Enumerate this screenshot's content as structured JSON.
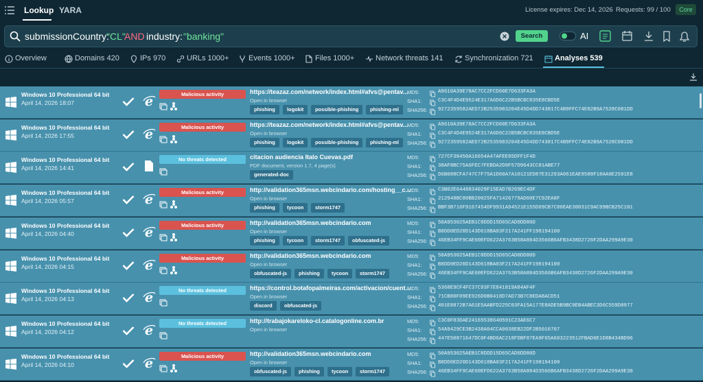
{
  "top_bar": {
    "tabs": [
      "Lookup",
      "YARA"
    ],
    "license": "License expires: Dec 14, 2026",
    "requests": "Requests: 99 / 100",
    "plan": "Core"
  },
  "search": {
    "query": [
      {
        "text": "submissionCountry:",
        "color": "#ffffff"
      },
      {
        "text": "\"CL\"",
        "color": "#6ee59a"
      },
      {
        "text": "AND",
        "color": "#ff6b81"
      },
      {
        "text": "industry:",
        "color": "#ffffff"
      },
      {
        "text": "\"banking\"",
        "color": "#6ee59a"
      }
    ],
    "button": "Search",
    "ai": "AI"
  },
  "result_tabs": {
    "items": [
      "Overview",
      "Domains 420",
      "IPs 970",
      "URLs 1000+",
      "Events 1000+",
      "Files 1000+",
      "Network threats 141",
      "Synchronization 721",
      "Analyses 539"
    ],
    "active": 8
  },
  "analyses": {
    "hash_labels": [
      "MD5:",
      "SHA1:",
      "SHA256:"
    ],
    "rows": [
      {
        "os": "Windows 10 Professional 64 bit",
        "date": "April 14, 2026 18:07",
        "verdict": "Malicious activity",
        "verdict_color": "#d9534f",
        "object": "https://teazaz.com/network/index.html#afvs@pentav...",
        "sub": "Open in browser",
        "tags": [
          "phishing",
          "logokit",
          "possible-phishing",
          "phishing-ml"
        ],
        "hashes": [
          "A9610A39E78AC7CC2FCD60E7D633FA3A",
          "C3C4F4D4E9524E317A6D6C22B5BCBC835E8CBD5E",
          "9272359582AED72B2535983204E45D4DD743817C4B9FFC74E82B9A7528C081DD"
        ]
      },
      {
        "os": "Windows 10 Professional 64 bit",
        "date": "April 14, 2026 17:55",
        "verdict": "Malicious activity",
        "verdict_color": "#d9534f",
        "object": "https://teazaz.com/network/index.html#afvs@pentav...",
        "sub": "Open in browser",
        "tags": [
          "phishing",
          "logokit",
          "possible-phishing",
          "phishing-ml"
        ],
        "hashes": [
          "A9610A39E78AC7CC2FCD60E7D633FA3A",
          "C3C4F4D4E9524E317A6D6C22B5BCBC835E8CBD5E",
          "9272359582AED72B2535983204E45D4DD743817C4B9FFC74E82B9A7528C081DD"
        ]
      },
      {
        "os": "Windows 10 Professional 64 bit",
        "date": "April 14, 2026 14:41",
        "verdict": "No threats detected",
        "verdict_color": "#5bc0de",
        "object": "citacion audiencia Italo Cuevas.pdf",
        "sub": "PDF document, version 1.7, 4 page(s)",
        "tags": [
          "generated-doc"
        ],
        "hashes": [
          "727CF38450A16654A47AFEE95DFF1F4D",
          "38AF8BC75A6FEC7FEBDA2D0F57D9643CC81ABE77",
          "D6B088CFA747C7F75A1D60A7A10121ED87E31293A061EAE9588F18AA0E2591E8"
        ]
      },
      {
        "os": "Windows 10 Professional 64 bit",
        "date": "April 14, 2026 05:57",
        "verdict": "Malicious activity",
        "verdict_color": "#d9534f",
        "object": "http://validation365msn.webcindario.com/hosting__c...",
        "sub": "Open in browser",
        "tags": [
          "phishing",
          "tycoon",
          "storm1747"
        ],
        "hashes": [
          "C3B02E6448834029F15EAD7B269EC4DF",
          "212948BC80BB20025FA71426779AD60E7C92EA8F",
          "BBF3B716F9167454DF9931A94521E155D69CB7C86EAE30031C9AC99BCB25C101"
        ]
      },
      {
        "os": "Windows 10 Professional 64 bit",
        "date": "April 14, 2026 04:40",
        "verdict": "Malicious activity",
        "verdict_color": "#d9534f",
        "object": "http://validation365msn.webcindario.com",
        "sub": "Open in browser",
        "tags": [
          "phishing",
          "tycoon",
          "storm1747",
          "obfuscated-js"
        ],
        "hashes": [
          "50A953025AEB1C8DDD15D65CAD0DD80D",
          "B8DD0ED20D143D618BA03F217A241FF198194100",
          "46EB34FF9CAE60EFD622A3763B58A884D3566B6AFB3438D2726F2DAA299A9E30"
        ]
      },
      {
        "os": "Windows 10 Professional 64 bit",
        "date": "April 14, 2026 04:15",
        "verdict": "Malicious activity",
        "verdict_color": "#d9534f",
        "object": "http://validation365msn.webcindario.com",
        "sub": "Open in browser",
        "tags": [
          "obfuscated-js",
          "phishing",
          "tycoon",
          "storm1747"
        ],
        "hashes": [
          "50A953025AEB1C8DDD15D65CAD0DD80D",
          "B8DD0ED20D143D618BA03F217A241FF198194100",
          "46EB34FF9CAE60EFD622A3763B58A884D3566B6AFB3438D2726F2DAA299A9E30"
        ]
      },
      {
        "os": "Windows 10 Professional 64 bit",
        "date": "April 14, 2026 04:13",
        "verdict": "No threats detected",
        "verdict_color": "#5bc0de",
        "object": "https://control.botafopalmeiras.com/activacion/cuent...",
        "sub": "Open in browser",
        "tags": [
          "discord",
          "obfuscated-js"
        ],
        "hashes": [
          "5368E9CF4FC37C93F7E841819A84AF4F",
          "71CB80F09EE926D0B0418D7AD73B7C8EDA8ACD51",
          "401E8872B7A61E5AABFD225C03FA15A177E8ADE5B9BC9EB4ABEC3D6C559D8977"
        ]
      },
      {
        "os": "Windows 10 Professional 64 bit",
        "date": "April 14, 2026 04:12",
        "verdict": "No threats detected",
        "verdict_color": "#5bc0de",
        "object": "http://trabajokareloko-cl.catalogonline.com.br",
        "sub": "Open in browser",
        "tags": [],
        "hashes": [
          "C3C0F03DAE24165538640591C23AE6C7",
          "54A9429CE3B2438A04CCA0038EB22DF2B5010707",
          "447E50871647DC0F4BD6AC218FDBF87EA9F65A603223512FBAD6E1D8B434BD96"
        ]
      },
      {
        "os": "Windows 10 Professional 64 bit",
        "date": "April 14, 2026 04:10",
        "verdict": "Malicious activity",
        "verdict_color": "#d9534f",
        "object": "http://validation365msn.webcindario.com",
        "sub": "Open in browser",
        "tags": [
          "obfuscated-js",
          "phishing",
          "tycoon",
          "storm1747"
        ],
        "hashes": [
          "50A953025AEB1C8DDD15D65CAD0DD80D",
          "B8DD0ED20D143D618BA03F217A241FF198194100",
          "46EB34FF9CAE60EFD622A3763B58A884D3566B6AFB3438D2726F2DAA299A9E30"
        ]
      }
    ]
  }
}
